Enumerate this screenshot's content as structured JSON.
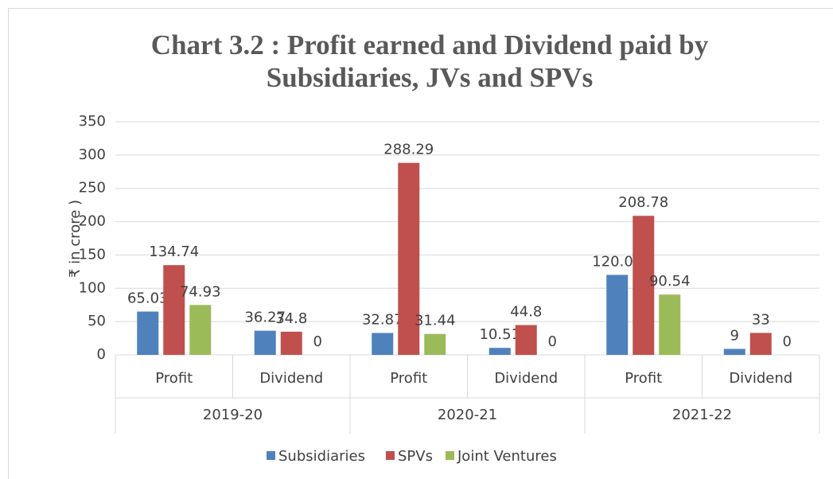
{
  "chart_data": {
    "type": "bar",
    "title": [
      "Chart 3.2 : Profit earned and Dividend paid by",
      "Subsidiaries, JVs and SPVs"
    ],
    "y_label": "₹ in crore )",
    "categories": [
      "Profit",
      "Dividend",
      "Profit",
      "Dividend",
      "Profit",
      "Dividend"
    ],
    "category_groups": [
      "2019-20",
      "2020-21",
      "2021-22"
    ],
    "series": [
      {
        "name": "Subsidiaries",
        "color": "#4f81bd",
        "values": [
          65.03,
          36.27,
          32.87,
          10.51,
          120.08,
          9
        ]
      },
      {
        "name": "SPVs",
        "color": "#c0504d",
        "values": [
          134.74,
          34.8,
          288.29,
          44.8,
          208.78,
          33
        ]
      },
      {
        "name": "Joint Ventures",
        "color": "#9bbb59",
        "values": [
          74.93,
          0,
          31.44,
          0,
          90.54,
          0
        ]
      }
    ],
    "ylim": [
      0,
      350
    ],
    "yticks": [
      0,
      50,
      100,
      150,
      200,
      250,
      300,
      350
    ],
    "grid": true,
    "legend": "bottom"
  }
}
